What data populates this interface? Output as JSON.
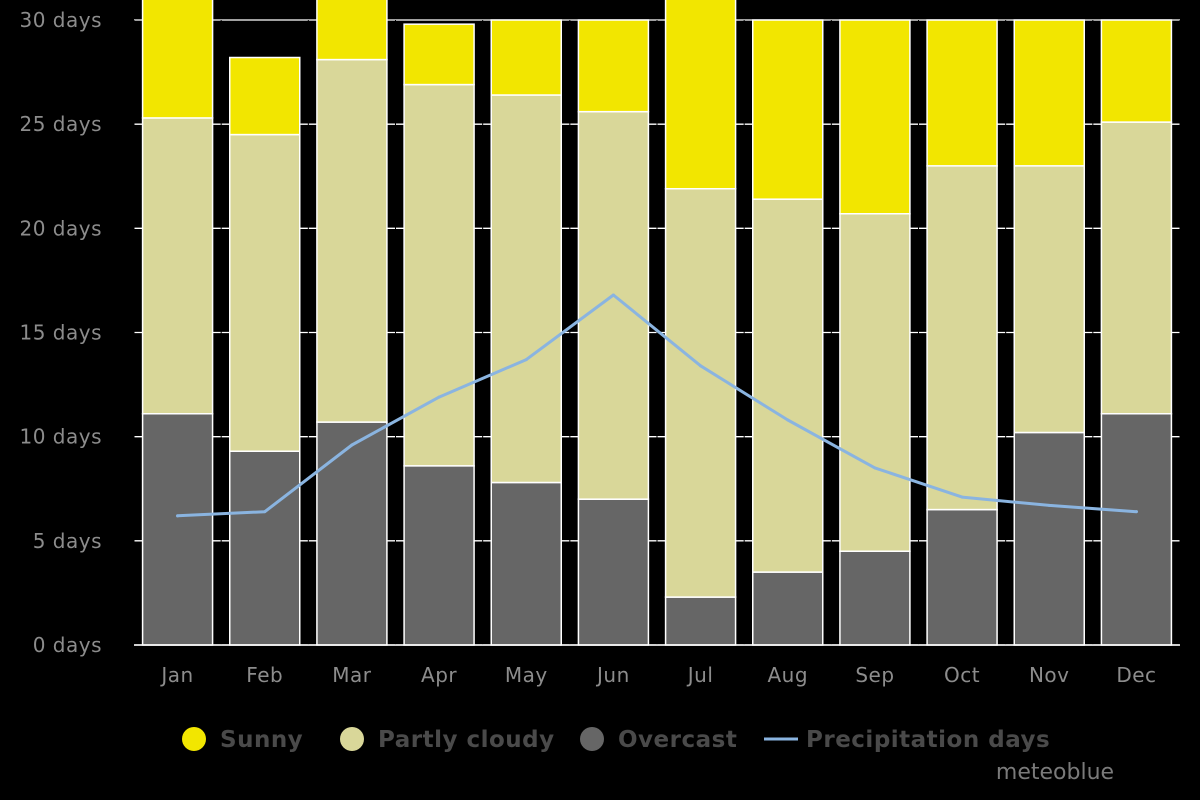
{
  "chart_data": {
    "type": "bar",
    "stacked": true,
    "title": "",
    "xlabel": "",
    "ylabel": "",
    "ylim": [
      0,
      30
    ],
    "y_ticks": [
      {
        "value": 0,
        "label": "0 days"
      },
      {
        "value": 5,
        "label": "5 days"
      },
      {
        "value": 10,
        "label": "10 days"
      },
      {
        "value": 15,
        "label": "15 days"
      },
      {
        "value": 20,
        "label": "20 days"
      },
      {
        "value": 25,
        "label": "25 days"
      },
      {
        "value": 30,
        "label": "30 days"
      }
    ],
    "grid": true,
    "categories": [
      "Jan",
      "Feb",
      "Mar",
      "Apr",
      "May",
      "Jun",
      "Jul",
      "Aug",
      "Sep",
      "Oct",
      "Nov",
      "Dec"
    ],
    "series": [
      {
        "name": "Overcast",
        "kind": "bar",
        "color": "#666666",
        "values": [
          11.1,
          9.3,
          10.7,
          8.6,
          7.8,
          7.0,
          2.3,
          3.5,
          4.5,
          6.5,
          10.2,
          11.1
        ]
      },
      {
        "name": "Partly cloudy",
        "kind": "bar",
        "color": "#d9d799",
        "values": [
          14.2,
          15.2,
          17.4,
          18.3,
          18.6,
          18.6,
          19.6,
          17.9,
          16.2,
          16.5,
          12.8,
          14.0
        ]
      },
      {
        "name": "Sunny",
        "kind": "bar",
        "color": "#f2e600",
        "values": [
          5.7,
          3.7,
          2.9,
          2.9,
          3.6,
          4.4,
          9.1,
          8.6,
          9.3,
          7.0,
          7.0,
          4.9
        ]
      },
      {
        "name": "Precipitation days",
        "kind": "line",
        "color": "#8ab4e0",
        "values": [
          6.2,
          6.4,
          9.6,
          11.9,
          13.7,
          16.8,
          13.4,
          10.8,
          8.5,
          7.1,
          6.7,
          6.4
        ]
      }
    ],
    "legend": {
      "position": "bottom",
      "items": [
        {
          "name": "Sunny",
          "symbol": "circle",
          "color": "#f2e600"
        },
        {
          "name": "Partly cloudy",
          "symbol": "circle",
          "color": "#d9d799"
        },
        {
          "name": "Overcast",
          "symbol": "circle",
          "color": "#666666"
        },
        {
          "name": "Precipitation days",
          "symbol": "line",
          "color": "#8ab4e0"
        }
      ]
    },
    "credit": "meteoblue"
  }
}
